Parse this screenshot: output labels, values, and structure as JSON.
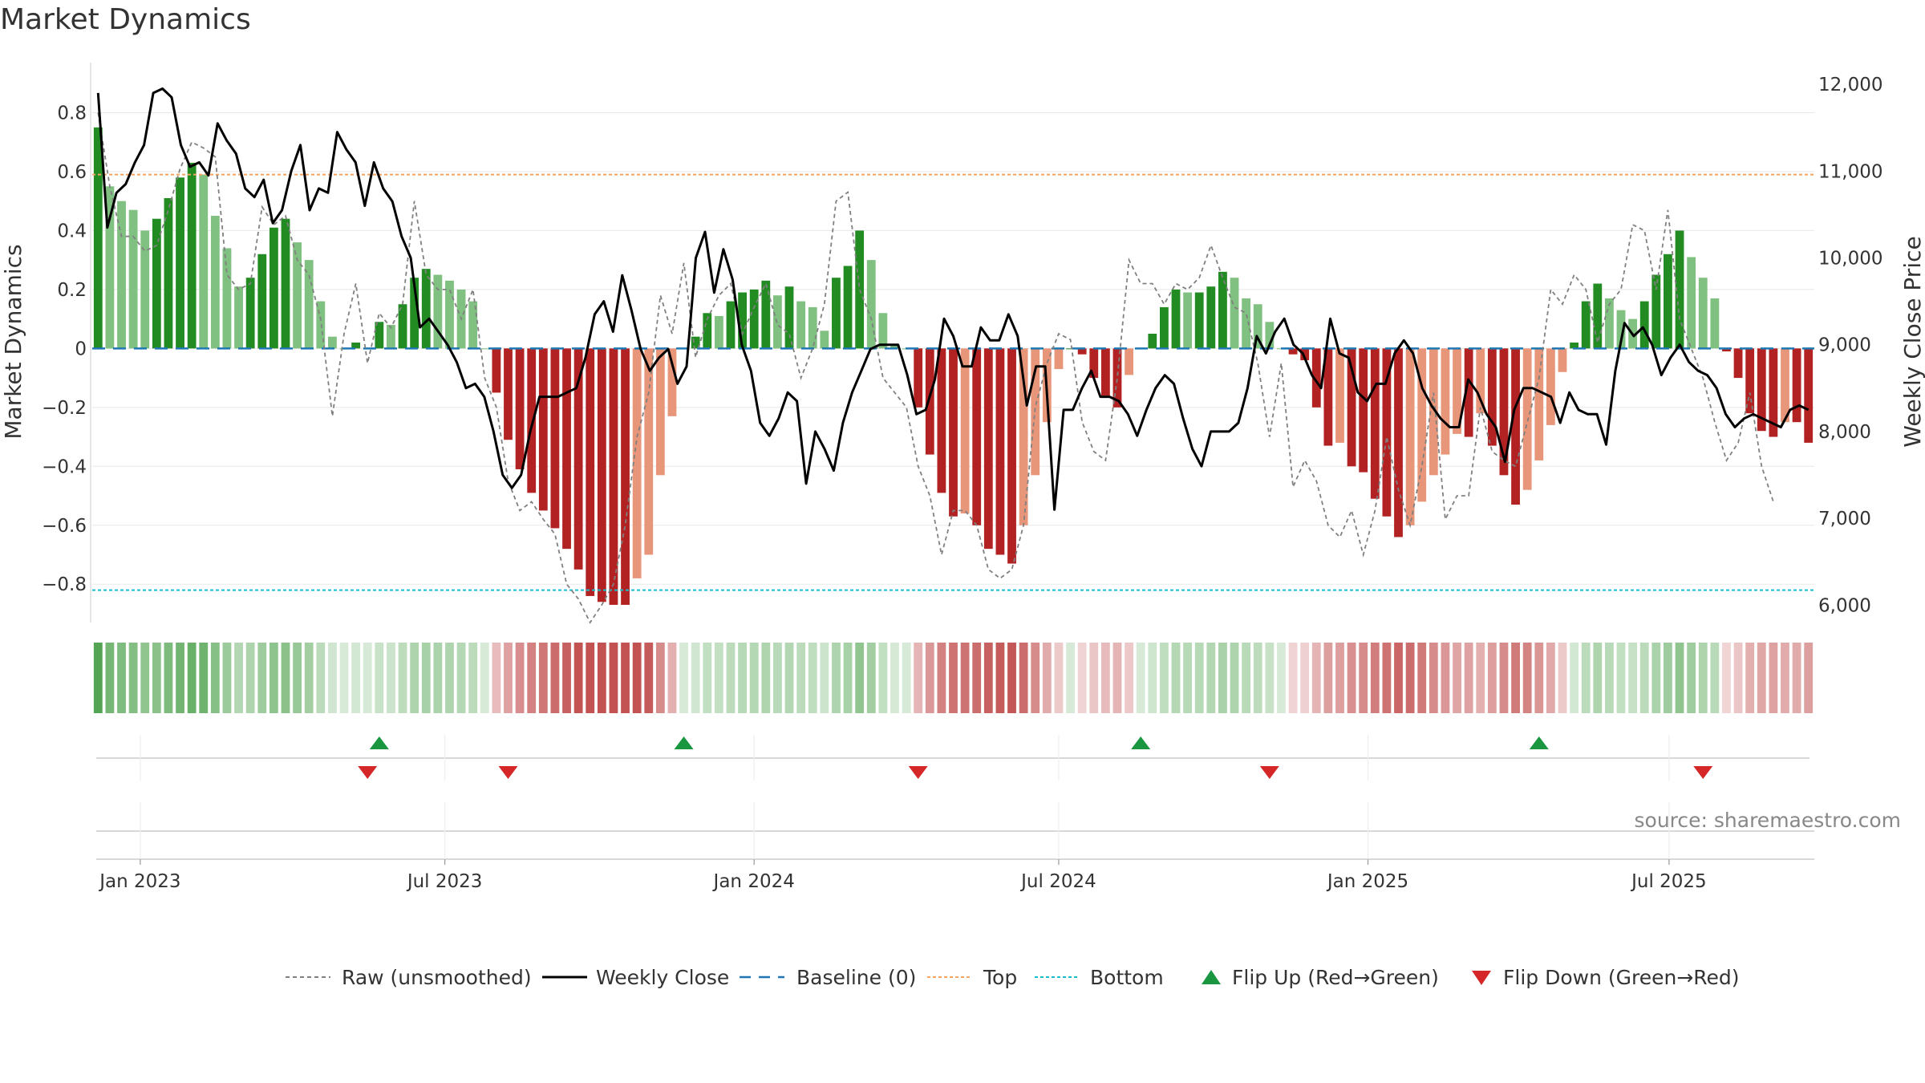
{
  "title": "Market Dynamics",
  "source": "source: sharemaestro.com",
  "colors": {
    "bar_strong_green": "#228b22",
    "bar_light_green": "#80c080",
    "bar_strong_red": "#b22222",
    "bar_light_red": "#e8967a",
    "close_line": "#000000",
    "raw_line": "#808080",
    "baseline": "#1f77b4",
    "top": "#f4a460",
    "bottom": "#17becf",
    "flip_up": "#1a9641",
    "flip_down": "#d62728",
    "grid": "#e8e8e8"
  },
  "chart_data": {
    "type": "bar+line",
    "title": "Market Dynamics",
    "ylabel_left": "Market Dynamics",
    "ylabel_right": "Weekly Close Price",
    "ylim_left": [
      -0.93,
      0.97
    ],
    "ylim_right": [
      5800,
      12250
    ],
    "left_ticks": [
      0.8,
      0.6,
      0.4,
      0.2,
      0,
      -0.2,
      -0.4,
      -0.6,
      -0.8
    ],
    "left_tick_labels": [
      "0.8",
      "0.6",
      "0.4",
      "0.2",
      "0",
      "−0.2",
      "−0.4",
      "−0.6",
      "−0.8"
    ],
    "right_ticks": [
      12000,
      11000,
      10000,
      9000,
      8000,
      7000,
      6000
    ],
    "right_tick_labels": [
      "12,000",
      "11,000",
      "10,000",
      "9,000",
      "8,000",
      "7,000",
      "6,000"
    ],
    "x_tick_weeks": [
      3.6,
      29.6,
      56,
      82,
      108.4,
      134.1
    ],
    "x_tick_labels": [
      "Jan 2023",
      "Jul 2023",
      "Jan 2024",
      "Jul 2024",
      "Jan 2025",
      "Jul 2025"
    ],
    "top_level": 0.59,
    "bottom_level": -0.82,
    "baseline": 0,
    "market_dynamics": [
      0.75,
      0.55,
      0.5,
      0.47,
      0.4,
      0.44,
      0.51,
      0.58,
      0.63,
      0.59,
      0.45,
      0.34,
      0.21,
      0.24,
      0.32,
      0.41,
      0.44,
      0.36,
      0.3,
      0.16,
      0.04,
      0.0,
      0.02,
      0.0,
      0.09,
      0.08,
      0.15,
      0.24,
      0.27,
      0.25,
      0.23,
      0.2,
      0.16,
      0.0,
      -0.15,
      -0.31,
      -0.41,
      -0.49,
      -0.55,
      -0.61,
      -0.68,
      -0.75,
      -0.84,
      -0.86,
      -0.87,
      -0.87,
      -0.78,
      -0.7,
      -0.43,
      -0.23,
      0.0,
      0.04,
      0.12,
      0.11,
      0.16,
      0.19,
      0.2,
      0.23,
      0.18,
      0.21,
      0.16,
      0.14,
      0.06,
      0.24,
      0.28,
      0.4,
      0.3,
      0.12,
      0.01,
      0.0,
      -0.2,
      -0.36,
      -0.49,
      -0.57,
      -0.56,
      -0.6,
      -0.68,
      -0.7,
      -0.73,
      -0.6,
      -0.43,
      -0.25,
      -0.07,
      0.0,
      -0.02,
      -0.1,
      -0.16,
      -0.2,
      -0.09,
      0.0,
      0.05,
      0.14,
      0.2,
      0.19,
      0.19,
      0.21,
      0.26,
      0.24,
      0.17,
      0.15,
      0.09,
      0.0,
      -0.02,
      -0.04,
      -0.2,
      -0.33,
      -0.32,
      -0.4,
      -0.42,
      -0.51,
      -0.57,
      -0.64,
      -0.6,
      -0.52,
      -0.43,
      -0.36,
      -0.29,
      -0.3,
      -0.22,
      -0.33,
      -0.43,
      -0.53,
      -0.48,
      -0.38,
      -0.26,
      -0.08,
      0.02,
      0.16,
      0.22,
      0.17,
      0.13,
      0.1,
      0.16,
      0.25,
      0.32,
      0.4,
      0.31,
      0.24,
      0.17,
      -0.01,
      -0.1,
      -0.22,
      -0.28,
      -0.3,
      -0.25,
      -0.25,
      -0.32
    ],
    "raw_unsmoothed": [
      0.8,
      0.55,
      0.38,
      0.38,
      0.33,
      0.35,
      0.47,
      0.61,
      0.7,
      0.68,
      0.65,
      0.25,
      0.2,
      0.22,
      0.48,
      0.42,
      0.45,
      0.3,
      0.25,
      0.1,
      -0.23,
      0.05,
      0.22,
      -0.05,
      0.12,
      0.07,
      0.15,
      0.5,
      0.25,
      0.2,
      0.2,
      0.1,
      0.2,
      -0.1,
      -0.2,
      -0.45,
      -0.55,
      -0.52,
      -0.58,
      -0.63,
      -0.8,
      -0.85,
      -0.93,
      -0.87,
      -0.8,
      -0.6,
      -0.3,
      -0.15,
      0.18,
      0.05,
      0.29,
      -0.03,
      0.1,
      0.18,
      0.22,
      0.05,
      0.14,
      0.22,
      0.08,
      0.05,
      -0.1,
      0.0,
      0.15,
      0.5,
      0.53,
      0.2,
      0.1,
      -0.1,
      -0.15,
      -0.2,
      -0.4,
      -0.5,
      -0.7,
      -0.55,
      -0.55,
      -0.6,
      -0.75,
      -0.78,
      -0.75,
      -0.6,
      -0.2,
      -0.05,
      0.05,
      0.03,
      -0.25,
      -0.35,
      -0.38,
      -0.1,
      0.3,
      0.22,
      0.22,
      0.15,
      0.22,
      0.2,
      0.24,
      0.35,
      0.24,
      0.14,
      0.12,
      -0.05,
      -0.3,
      -0.05,
      -0.47,
      -0.38,
      -0.45,
      -0.6,
      -0.64,
      -0.55,
      -0.7,
      -0.55,
      -0.3,
      -0.48,
      -0.6,
      -0.4,
      -0.15,
      -0.58,
      -0.5,
      -0.5,
      -0.2,
      -0.35,
      -0.38,
      -0.4,
      -0.25,
      -0.1,
      0.2,
      0.15,
      0.25,
      0.2,
      0.02,
      0.15,
      0.2,
      0.42,
      0.4,
      0.2,
      0.47,
      0.1,
      0.0,
      -0.1,
      -0.25,
      -0.38,
      -0.32,
      -0.15,
      -0.4,
      -0.52
    ],
    "weekly_close": [
      11900,
      10350,
      10750,
      10850,
      11100,
      11300,
      11900,
      11950,
      11850,
      11300,
      11050,
      11100,
      10950,
      11550,
      11350,
      11200,
      10800,
      10700,
      10900,
      10400,
      10550,
      11000,
      11300,
      10550,
      10800,
      10750,
      11450,
      11250,
      11100,
      10600,
      11100,
      10800,
      10650,
      10250,
      10000,
      9200,
      9300,
      9150,
      9000,
      8800,
      8500,
      8550,
      8400,
      8000,
      7500,
      7350,
      7500,
      8000,
      8400,
      8400,
      8400,
      8450,
      8500,
      8850,
      9350,
      9500,
      9150,
      9800,
      9400,
      8950,
      8700,
      8850,
      8950,
      8550,
      8750,
      10000,
      10300,
      9600,
      10100,
      9750,
      9000,
      8700,
      8100,
      7950,
      8150,
      8450,
      8350,
      7400,
      8000,
      7800,
      7550,
      8100,
      8450,
      8700,
      8950,
      9000,
      9000,
      9000,
      8650,
      8200,
      8250,
      8600,
      9300,
      9100,
      8750,
      8750,
      9200,
      9050,
      9050,
      9350,
      9100,
      8300,
      8750,
      8750,
      7100,
      8250,
      8250,
      8500,
      8700,
      8400,
      8400,
      8350,
      8200,
      7950,
      8250,
      8500,
      8650,
      8550,
      8150,
      7800,
      7600,
      8000,
      8000,
      8000,
      8100,
      8500,
      9100,
      8900,
      9150,
      9300,
      9000,
      8900,
      8650,
      8500,
      9300,
      8900,
      8850,
      8450,
      8350,
      8550,
      8550,
      8900,
      9050,
      8900,
      8500,
      8300,
      8150,
      8050,
      8050,
      8600,
      8450,
      8200,
      8050,
      7650,
      8250,
      8500,
      8500,
      8450,
      8400,
      8100,
      8450,
      8250,
      8200,
      8200,
      7850,
      8700,
      9250,
      9100,
      9200,
      9000,
      8650,
      8850,
      9000,
      8800,
      8700,
      8650,
      8500,
      8200,
      8050,
      8150,
      8200,
      8150,
      8100,
      8050,
      8250,
      8300,
      8250
    ],
    "flip_up_weeks": [
      24,
      50,
      89,
      123
    ],
    "flip_down_weeks": [
      23,
      35,
      70,
      100,
      137
    ],
    "legend": [
      {
        "label": "Raw (unsmoothed)",
        "marker": "dashed-gray"
      },
      {
        "label": "Weekly Close",
        "marker": "solid-black"
      },
      {
        "label": "Baseline (0)",
        "marker": "dashed-blue"
      },
      {
        "label": "Top",
        "marker": "dotted-orange"
      },
      {
        "label": "Bottom",
        "marker": "dotted-cyan"
      },
      {
        "label": "Flip Up (Red→Green)",
        "marker": "triangle-up-green"
      },
      {
        "label": "Flip Down (Green→Red)",
        "marker": "triangle-down-red"
      }
    ]
  }
}
